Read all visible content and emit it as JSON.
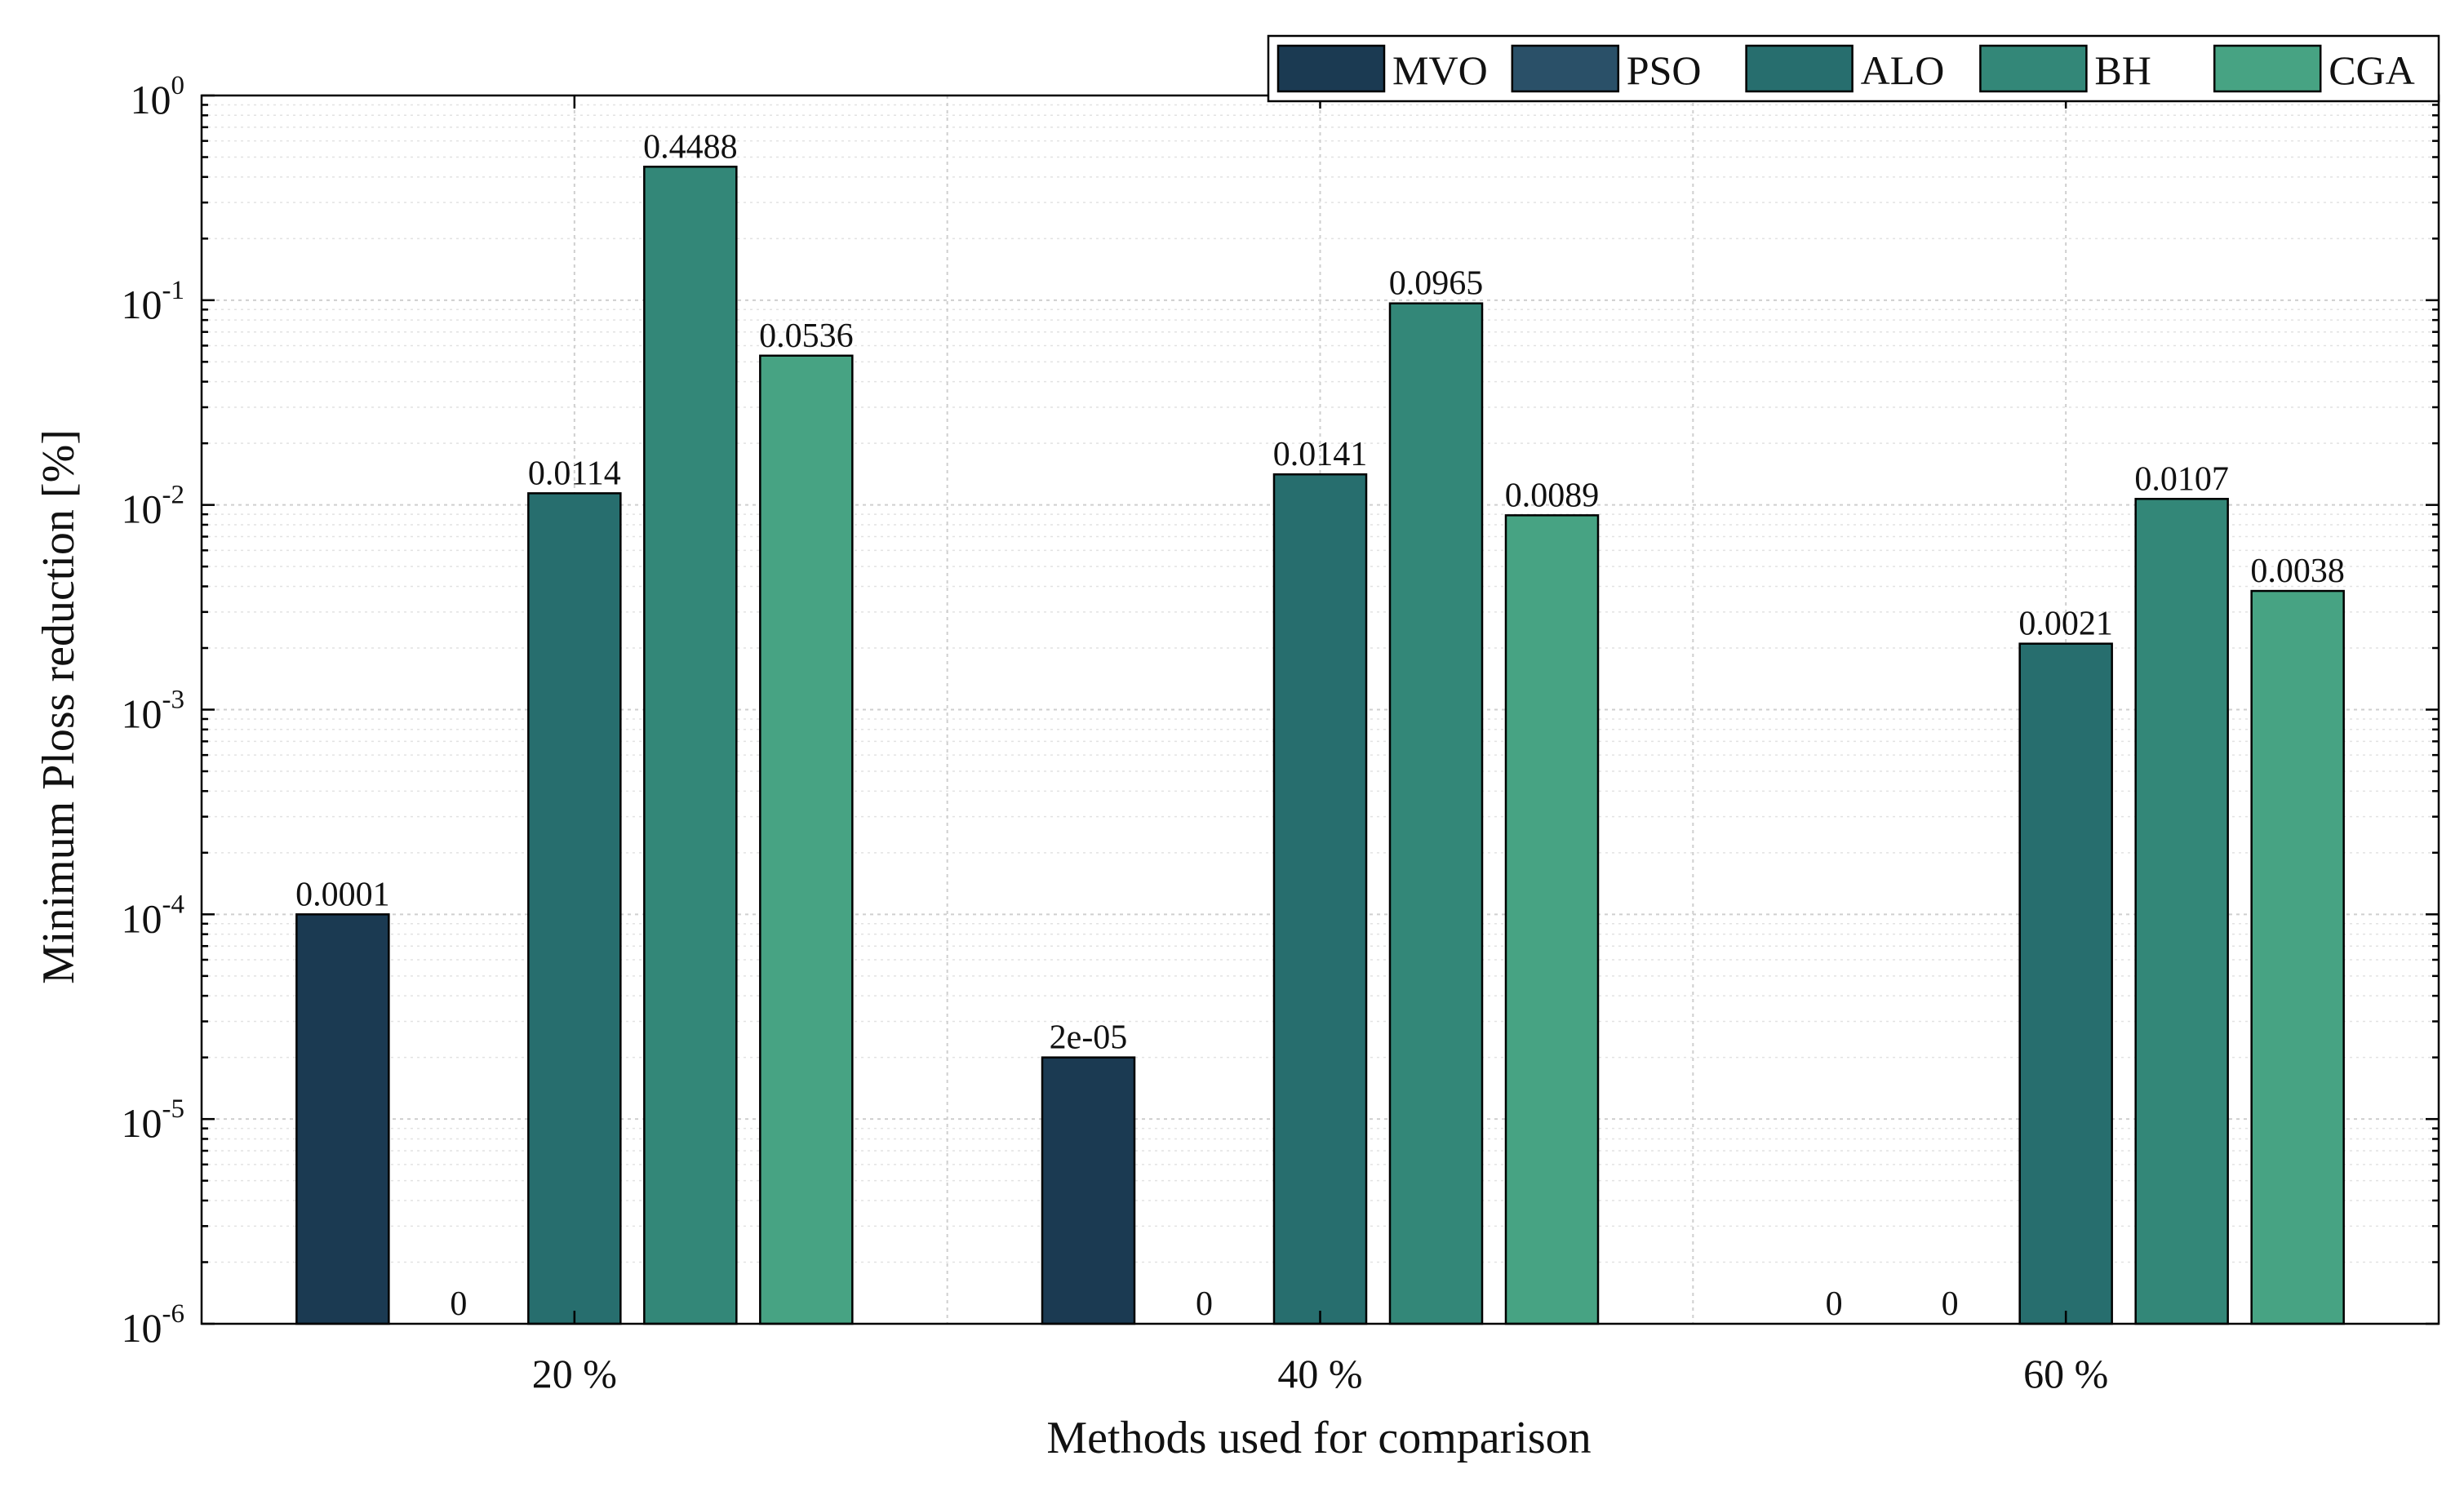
{
  "chart_data": {
    "type": "bar",
    "scale": "log",
    "xlabel": "Methods used for comparison",
    "ylabel": "Minimum Ploss reduction [%]",
    "ylim": [
      1e-06,
      1
    ],
    "yticks": [
      {
        "base": "10",
        "exp": "0",
        "value": 1
      },
      {
        "base": "10",
        "exp": "-1",
        "value": 0.1
      },
      {
        "base": "10",
        "exp": "-2",
        "value": 0.01
      },
      {
        "base": "10",
        "exp": "-3",
        "value": 0.001
      },
      {
        "base": "10",
        "exp": "-4",
        "value": 0.0001
      },
      {
        "base": "10",
        "exp": "-5",
        "value": 1e-05
      },
      {
        "base": "10",
        "exp": "-6",
        "value": 1e-06
      }
    ],
    "categories": [
      "20 %",
      "40 %",
      "60 %"
    ],
    "grid": true,
    "legend_position": "top-right",
    "series": [
      {
        "name": "MVO",
        "color": "#1b3a52",
        "values": [
          0.0001,
          2e-05,
          0
        ],
        "labels": [
          "0.0001",
          "2e-05",
          "0"
        ]
      },
      {
        "name": "PSO",
        "color": "#2a5068",
        "values": [
          0,
          0,
          0
        ],
        "labels": [
          "0",
          "0",
          "0"
        ]
      },
      {
        "name": "ALO",
        "color": "#276e6e",
        "values": [
          0.0114,
          0.0141,
          0.0021
        ],
        "labels": [
          "0.0114",
          "0.0141",
          "0.0021"
        ]
      },
      {
        "name": "BH",
        "color": "#338778",
        "values": [
          0.4488,
          0.0965,
          0.0107
        ],
        "labels": [
          "0.4488",
          "0.0965",
          "0.0107"
        ]
      },
      {
        "name": "CGA",
        "color": "#47a383",
        "values": [
          0.0536,
          0.0089,
          0.0038
        ],
        "labels": [
          "0.0536",
          "0.0089",
          "0.0038"
        ]
      }
    ]
  }
}
